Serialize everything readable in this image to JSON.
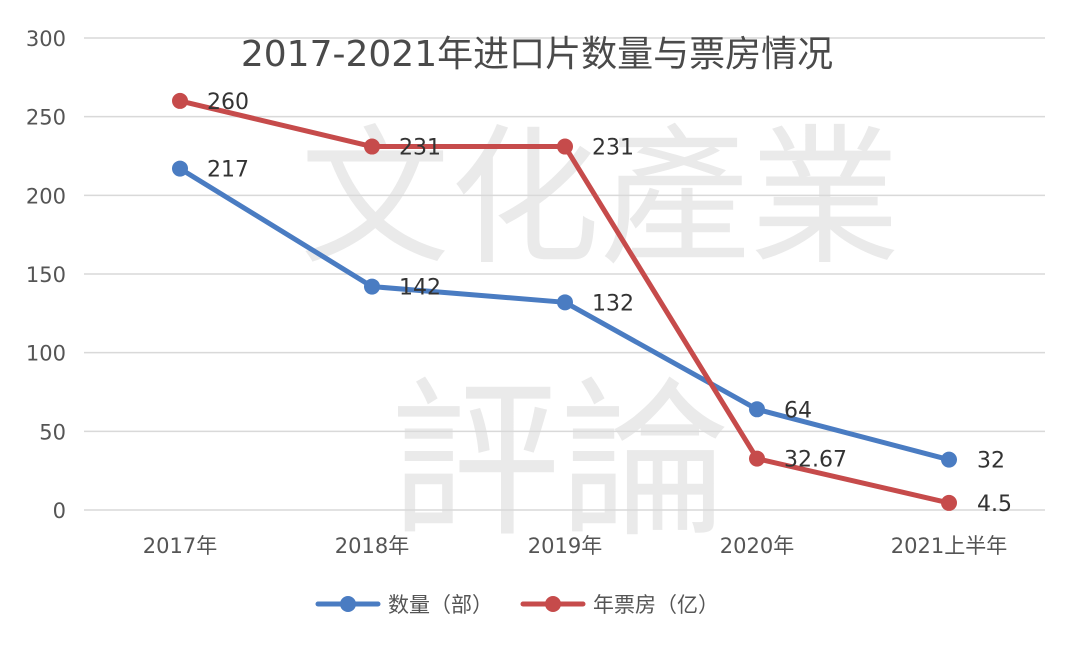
{
  "chart_data": {
    "type": "line",
    "title": "2017-2021年进口片数量与票房情况",
    "categories": [
      "2017年",
      "2018年",
      "2019年",
      "2020年",
      "2021上半年"
    ],
    "ylim": [
      0,
      300
    ],
    "yticks": [
      0,
      50,
      100,
      150,
      200,
      250,
      300
    ],
    "grid": true,
    "legend_position": "bottom",
    "series": [
      {
        "name": "数量（部）",
        "color": "#4a7cc2",
        "values": [
          217,
          142,
          132,
          64,
          32
        ],
        "labels": [
          "217",
          "142",
          "132",
          "64",
          "32"
        ]
      },
      {
        "name": "年票房（亿）",
        "color": "#c64b4b",
        "values": [
          260,
          231,
          231,
          32.67,
          4.5
        ],
        "labels": [
          "260",
          "231",
          "231",
          "32.67",
          "4.5"
        ]
      }
    ]
  },
  "watermark": {
    "top": "文化產業",
    "bottom": "評論"
  }
}
